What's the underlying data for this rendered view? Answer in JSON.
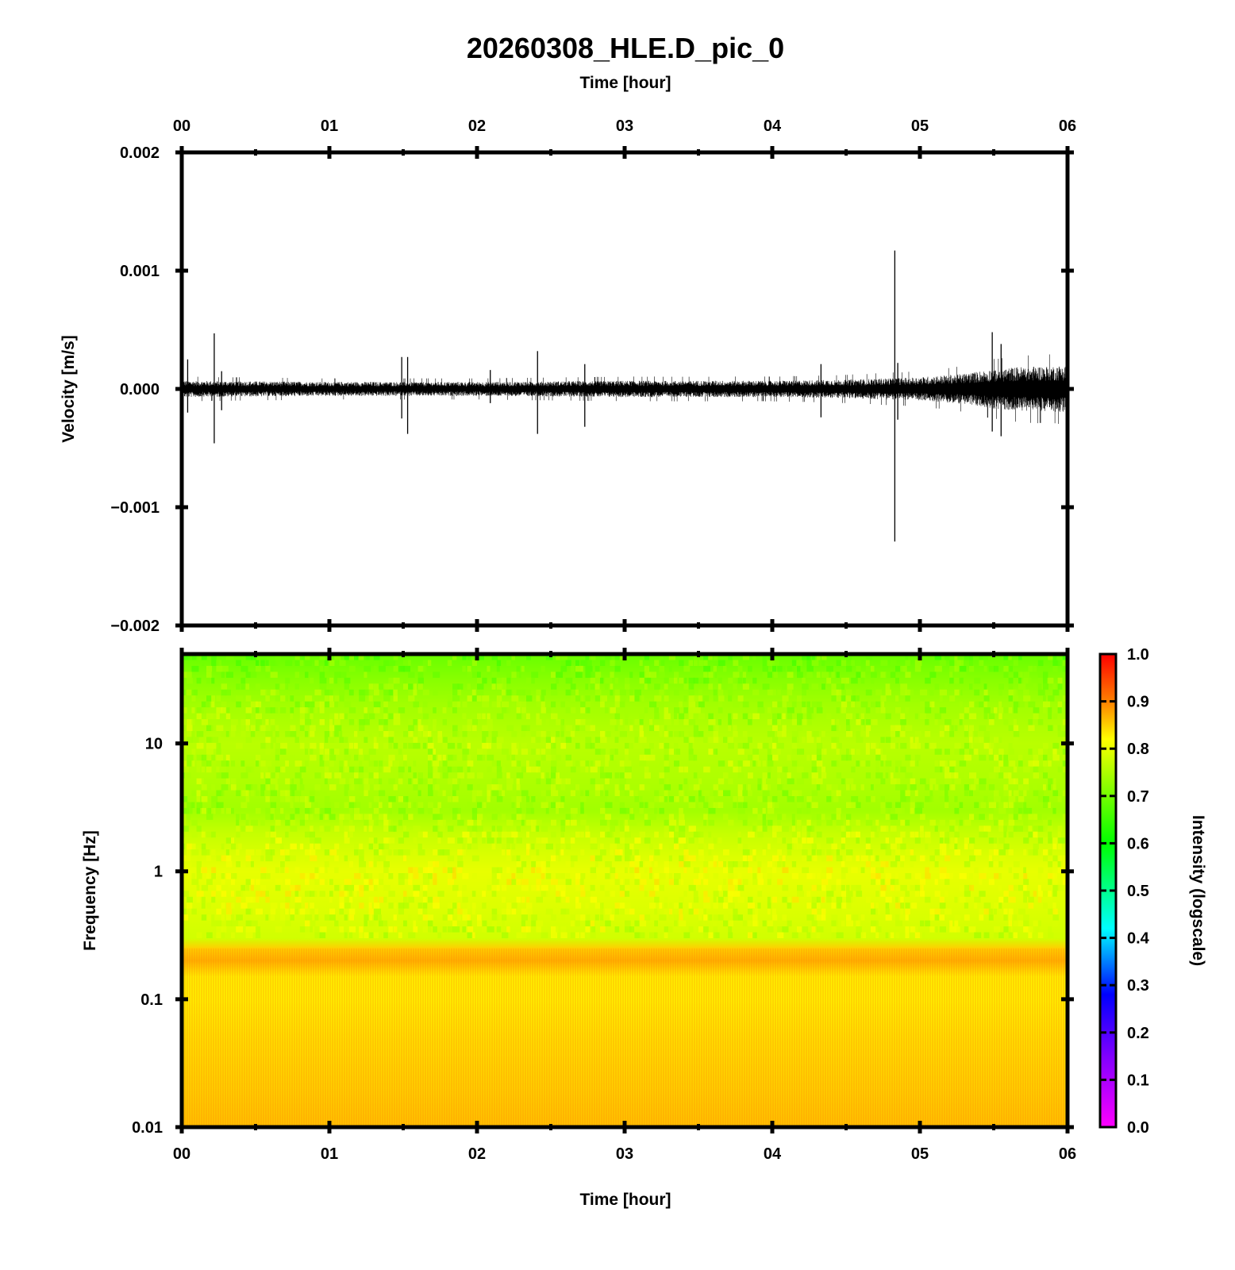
{
  "chart_data": [
    {
      "type": "line",
      "title": "20260308_HLE.D_pic_0",
      "xlabel": "Time [hour]",
      "ylabel": "Velocity [m/s]",
      "x_unit": "hour",
      "xlim": [
        0,
        6
      ],
      "ylim": [
        -0.002,
        0.002
      ],
      "x_ticks": [
        "00",
        "01",
        "02",
        "03",
        "04",
        "05",
        "06"
      ],
      "y_ticks": [
        "0.002",
        "0.001",
        "0.000",
        "−0.001",
        "−0.002"
      ],
      "y_tick_values": [
        0.002,
        0.001,
        0.0,
        -0.001,
        -0.002
      ],
      "series": [
        {
          "noise_envelope": {
            "x": [
              0.0,
              1.0,
              2.0,
              3.0,
              4.0,
              4.5,
              5.0,
              5.3,
              5.5,
              5.7,
              6.0
            ],
            "amplitude": [
              7e-05,
              6e-05,
              6e-05,
              7e-05,
              7e-05,
              8e-05,
              0.0001,
              0.00013,
              0.00017,
              0.00019,
              0.0002
            ]
          },
          "spikes": [
            {
              "x": 0.04,
              "max": 0.00025,
              "min": -0.0002
            },
            {
              "x": 0.22,
              "max": 0.00047,
              "min": -0.00046
            },
            {
              "x": 0.27,
              "max": 0.00015,
              "min": -0.00018
            },
            {
              "x": 1.49,
              "max": 0.00027,
              "min": -0.00025
            },
            {
              "x": 1.53,
              "max": 0.00027,
              "min": -0.00038
            },
            {
              "x": 2.09,
              "max": 0.00016,
              "min": -0.00012
            },
            {
              "x": 2.41,
              "max": 0.00032,
              "min": -0.00038
            },
            {
              "x": 2.73,
              "max": 0.00021,
              "min": -0.00032
            },
            {
              "x": 4.33,
              "max": 0.00021,
              "min": -0.00024
            },
            {
              "x": 4.83,
              "max": 0.00117,
              "min": -0.00129
            },
            {
              "x": 4.85,
              "max": 0.00022,
              "min": -0.00026
            },
            {
              "x": 5.49,
              "max": 0.00048,
              "min": -0.00036
            },
            {
              "x": 5.55,
              "max": 0.00038,
              "min": -0.0004
            }
          ]
        }
      ],
      "grid": false
    },
    {
      "type": "heatmap",
      "xlabel": "Time [hour]",
      "ylabel": "Frequency [Hz]",
      "xlim": [
        0,
        6
      ],
      "ylim": [
        0.01,
        50
      ],
      "y_scale": "log",
      "x_ticks": [
        "00",
        "01",
        "02",
        "03",
        "04",
        "05",
        "06"
      ],
      "y_ticks": [
        "10",
        "1",
        "0.1",
        "0.01"
      ],
      "y_tick_values": [
        10,
        1,
        0.1,
        0.01
      ],
      "intensity_profile": {
        "frequency_hz": [
          50,
          30,
          20,
          10,
          5,
          3,
          2,
          1,
          0.5,
          0.3,
          0.25,
          0.2,
          0.15,
          0.1,
          0.05,
          0.02,
          0.01
        ],
        "intensity": [
          0.69,
          0.72,
          0.74,
          0.76,
          0.75,
          0.74,
          0.77,
          0.8,
          0.79,
          0.78,
          0.85,
          0.87,
          0.83,
          0.83,
          0.84,
          0.85,
          0.86
        ]
      },
      "colorbar": {
        "label": "Intensity (logscale)",
        "range": [
          0.0,
          1.0
        ],
        "ticks": [
          "1.0",
          "0.9",
          "0.8",
          "0.7",
          "0.6",
          "0.5",
          "0.4",
          "0.3",
          "0.2",
          "0.1",
          "0.0"
        ],
        "tick_values": [
          1.0,
          0.9,
          0.8,
          0.7,
          0.6,
          0.5,
          0.4,
          0.3,
          0.2,
          0.1,
          0.0
        ],
        "colors": [
          "#ff00ff",
          "#8000ff",
          "#0000ff",
          "#00ffff",
          "#00ff00",
          "#ffff00",
          "#ff8000",
          "#ff0000"
        ],
        "color_stops": [
          0.0,
          0.15,
          0.28,
          0.42,
          0.6,
          0.82,
          0.9,
          1.0
        ]
      }
    }
  ],
  "colors": {
    "trace": "#000000",
    "frame": "#000000",
    "background": "#ffffff"
  }
}
